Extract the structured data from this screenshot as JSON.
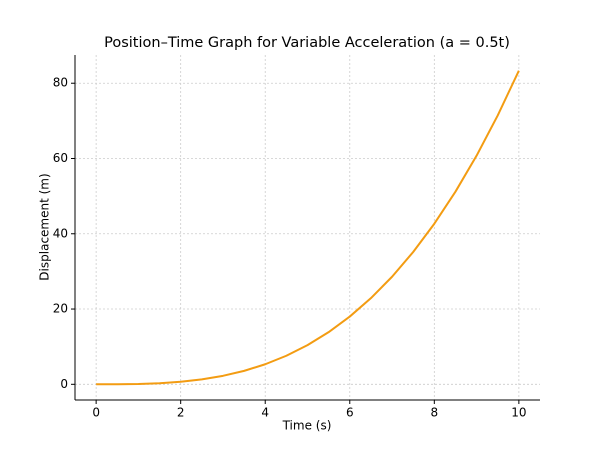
{
  "chart_data": {
    "type": "line",
    "title": "Position–Time Graph for Variable Acceleration (a = 0.5t)",
    "x_label": "Time (s)",
    "y_label": "Displacement (m)",
    "x": [
      0,
      0.5,
      1,
      1.5,
      2,
      2.5,
      3,
      3.5,
      4,
      4.5,
      5,
      5.5,
      6,
      6.5,
      7,
      7.5,
      8,
      8.5,
      9,
      9.5,
      10
    ],
    "values": [
      0,
      0.01,
      0.08,
      0.28,
      0.67,
      1.3,
      2.25,
      3.57,
      5.33,
      7.59,
      10.42,
      13.86,
      18,
      22.89,
      28.58,
      35.16,
      42.67,
      51.18,
      60.75,
      71.45,
      83.33
    ],
    "color": "#f39c12",
    "xlim": [
      -0.5,
      10.5
    ],
    "ylim": [
      -4.17,
      87.5
    ],
    "xticks": [
      0,
      2,
      4,
      6,
      8,
      10
    ],
    "yticks": [
      0,
      20,
      40,
      60,
      80
    ],
    "grid": true
  }
}
